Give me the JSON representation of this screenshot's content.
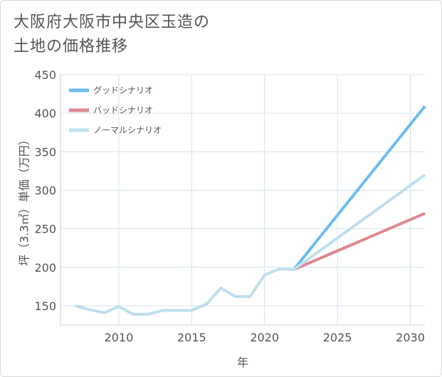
{
  "page": {
    "title_line1": "大阪府大阪市中央区玉造の",
    "title_line2": "土地の価格推移"
  },
  "chart_data": {
    "type": "line",
    "title": "大阪府大阪市中央区玉造の土地の価格推移",
    "xlabel": "年",
    "ylabel": "坪（3.3㎡）単価（万円）",
    "xlim": [
      2006,
      2031
    ],
    "ylim": [
      125,
      450
    ],
    "xticks": [
      2010,
      2015,
      2020,
      2025,
      2030
    ],
    "yticks": [
      150,
      200,
      250,
      300,
      350,
      400,
      450
    ],
    "grid": true,
    "legend_position": "top-left",
    "series": [
      {
        "name": "グッドシナリオ",
        "color": "#6cbcf0",
        "x": [
          2022,
          2031
        ],
        "values": [
          197,
          409
        ]
      },
      {
        "name": "バッドシナリオ",
        "color": "#dd8790",
        "x": [
          2022,
          2031
        ],
        "values": [
          197,
          270
        ]
      },
      {
        "name": "ノーマルシナリオ",
        "color": "#bfe0ec",
        "x": [
          2007,
          2008,
          2009,
          2010,
          2011,
          2012,
          2013,
          2014,
          2015,
          2016,
          2017,
          2018,
          2019,
          2020,
          2021,
          2022,
          2031
        ],
        "values": [
          150,
          145,
          141,
          149,
          139,
          139,
          144,
          144,
          144,
          152,
          173,
          162,
          162,
          190,
          198,
          197,
          320
        ]
      }
    ]
  }
}
